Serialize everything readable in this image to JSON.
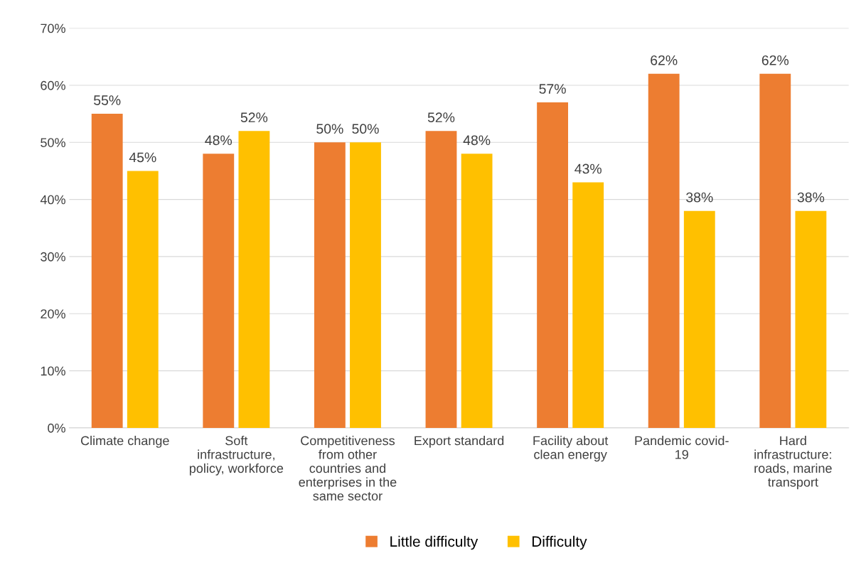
{
  "chart_data": {
    "type": "bar",
    "categories": [
      "Climate change",
      "Soft\ninfrastructure,\npolicy, workforce",
      "Competitiveness\nfrom other\ncountries and\nenterprises in the\nsame sector",
      "Export standard",
      "Facility about\nclean energy",
      "Pandemic covid-\n19",
      "Hard\ninfrastructure:\nroads, marine\ntransport"
    ],
    "series": [
      {
        "name": "Little difficulty",
        "color": "#ed7d31",
        "values": [
          55,
          48,
          50,
          52,
          57,
          62,
          62
        ],
        "value_labels": [
          "55%",
          "48%",
          "50%",
          "52%",
          "57%",
          "62%",
          "62%"
        ]
      },
      {
        "name": "Difficulty",
        "color": "#ffc000",
        "values": [
          45,
          52,
          50,
          48,
          43,
          38,
          38
        ],
        "value_labels": [
          "45%",
          "52%",
          "50%",
          "48%",
          "43%",
          "38%",
          "38%"
        ]
      }
    ],
    "ylim": [
      0,
      70
    ],
    "yticks": [
      {
        "value": 0,
        "label": "0%"
      },
      {
        "value": 10,
        "label": "10%"
      },
      {
        "value": 20,
        "label": "20%"
      },
      {
        "value": 30,
        "label": "30%"
      },
      {
        "value": 40,
        "label": "40%"
      },
      {
        "value": 50,
        "label": "50%"
      },
      {
        "value": 60,
        "label": "60%"
      },
      {
        "value": 70,
        "label": "70%"
      }
    ],
    "grid": "y",
    "legend": "bottom"
  }
}
